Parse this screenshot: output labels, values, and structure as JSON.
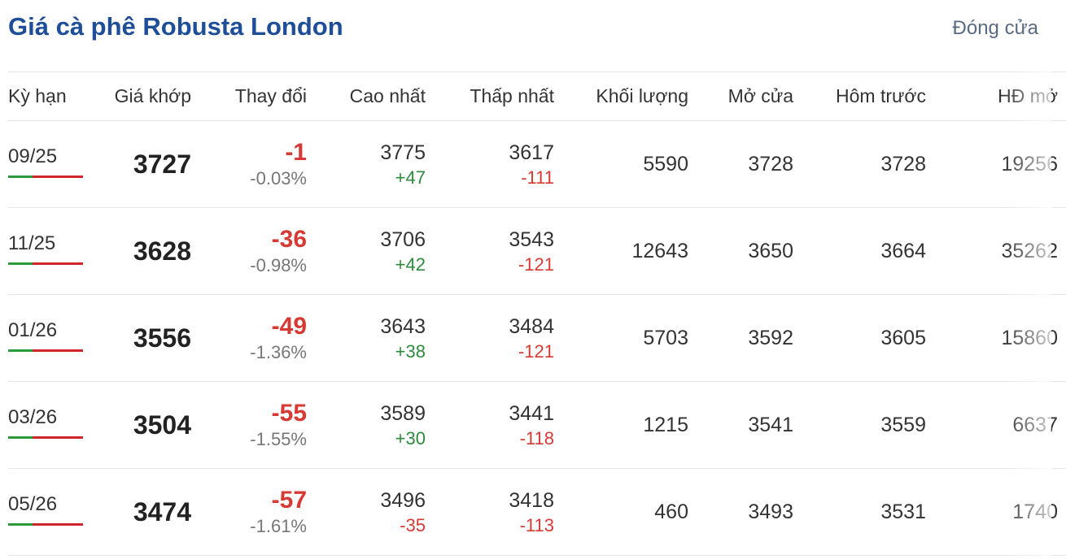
{
  "header": {
    "title": "Giá cà phê Robusta London",
    "status": "Đóng cửa"
  },
  "table": {
    "columns": [
      "Kỳ hạn",
      "Giá khớp",
      "Thay đổi",
      "Cao nhất",
      "Thấp nhất",
      "Khối lượng",
      "Mở cửa",
      "Hôm trước",
      "HĐ mở"
    ],
    "rows": [
      {
        "term": "09/25",
        "price": "3727",
        "change": "-1",
        "change_pct": "-0.03%",
        "high": "3775",
        "high_diff": "+47",
        "low": "3617",
        "low_diff": "-111",
        "volume": "5590",
        "open": "3728",
        "prev": "3728",
        "oi": "19256"
      },
      {
        "term": "11/25",
        "price": "3628",
        "change": "-36",
        "change_pct": "-0.98%",
        "high": "3706",
        "high_diff": "+42",
        "low": "3543",
        "low_diff": "-121",
        "volume": "12643",
        "open": "3650",
        "prev": "3664",
        "oi": "35262"
      },
      {
        "term": "01/26",
        "price": "3556",
        "change": "-49",
        "change_pct": "-1.36%",
        "high": "3643",
        "high_diff": "+38",
        "low": "3484",
        "low_diff": "-121",
        "volume": "5703",
        "open": "3592",
        "prev": "3605",
        "oi": "15860"
      },
      {
        "term": "03/26",
        "price": "3504",
        "change": "-55",
        "change_pct": "-1.55%",
        "high": "3589",
        "high_diff": "+30",
        "low": "3441",
        "low_diff": "-118",
        "volume": "1215",
        "open": "3541",
        "prev": "3559",
        "oi": "6637"
      },
      {
        "term": "05/26",
        "price": "3474",
        "change": "-57",
        "change_pct": "-1.61%",
        "high": "3496",
        "high_diff": "-35",
        "low": "3418",
        "low_diff": "-113",
        "volume": "460",
        "open": "3493",
        "prev": "3531",
        "oi": "1740"
      }
    ]
  },
  "colors": {
    "title": "#1f4e99",
    "negative": "#d63a35",
    "positive": "#2e8b3e",
    "bar_green": "#2a9a3c",
    "bar_red": "#d0262b"
  }
}
